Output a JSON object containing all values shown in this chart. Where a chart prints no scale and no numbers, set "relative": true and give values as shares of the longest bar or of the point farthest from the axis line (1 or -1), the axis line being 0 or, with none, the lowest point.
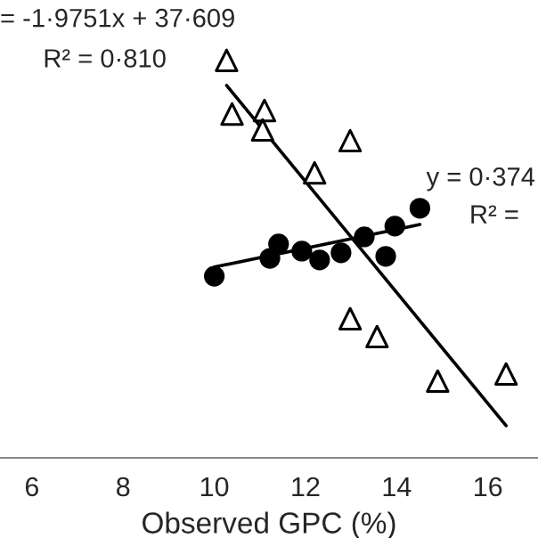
{
  "chart_data": {
    "type": "scatter",
    "relative": true,
    "xlabel": "Observed GPC (%)",
    "xlim": [
      5.3,
      17.1
    ],
    "xticks": [
      6,
      8,
      10,
      12,
      14,
      16
    ],
    "grid": false,
    "legend": false,
    "tick_labels": "x",
    "series": [
      {
        "marker": "triangle",
        "color": "#000000",
        "x": [
          10.27,
          10.39,
          11.1,
          11.06,
          12.98,
          12.2,
          12.98,
          13.57,
          14.9,
          16.4
        ],
        "values": [
          1.0,
          0.865,
          0.874,
          0.825,
          0.798,
          0.717,
          0.35,
          0.305,
          0.193,
          0.211
        ]
      },
      {
        "marker": "circle",
        "color": "#000000",
        "x": [
          10.0,
          11.22,
          11.41,
          11.92,
          12.31,
          12.78,
          13.29,
          13.76,
          13.96,
          14.51
        ],
        "values": [
          0.457,
          0.502,
          0.538,
          0.52,
          0.498,
          0.516,
          0.556,
          0.507,
          0.583,
          0.628
        ]
      },
      {
        "type": "line",
        "color": "#000000",
        "x": [
          10.27,
          16.4
        ],
        "values": [
          0.937,
          0.081
        ]
      },
      {
        "type": "line",
        "color": "#000000",
        "x": [
          10.0,
          14.51
        ],
        "values": [
          0.48,
          0.587
        ]
      }
    ],
    "annotations": [
      "= -1·9751x + 37·609",
      "R² = 0·810",
      "y = 0·374",
      "R² ="
    ]
  }
}
